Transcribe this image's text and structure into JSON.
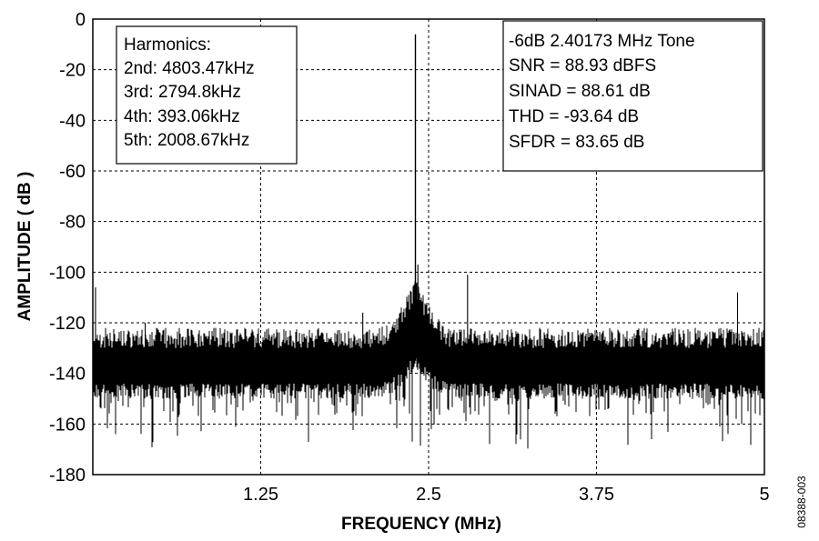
{
  "figure_code": "08388-003",
  "chart_data": {
    "type": "line",
    "title": "",
    "xlabel": "FREQUENCY (MHz)",
    "ylabel": "AMPLITUDE ( dB )",
    "xlim": [
      0,
      5
    ],
    "ylim": [
      -180,
      0
    ],
    "x_ticks": [
      1.25,
      2.5,
      3.75,
      5
    ],
    "x_tick_labels": [
      "1.25",
      "2.5",
      "3.75",
      "5"
    ],
    "y_ticks": [
      0,
      -20,
      -40,
      -60,
      -80,
      -100,
      -120,
      -140,
      -160,
      -180
    ],
    "y_tick_labels": [
      "0",
      "-20",
      "-40",
      "-60",
      "-80",
      "-100",
      "-120",
      "-140",
      "-160",
      "-180"
    ],
    "grid": true,
    "grid_style": "dashed",
    "series_color": "#000000",
    "noise_floor_db": -135,
    "noise_band_db": [
      -150,
      -122
    ],
    "noise_spike_min_db": -170,
    "peaks": [
      {
        "freq_mhz": 2.40173,
        "amplitude_db": -6
      },
      {
        "freq_mhz": 2.42,
        "amplitude_db": -97
      },
      {
        "freq_mhz": 2.79,
        "amplitude_db": -101
      },
      {
        "freq_mhz": 4.8,
        "amplitude_db": -108
      },
      {
        "freq_mhz": 2.01,
        "amplitude_db": -116
      },
      {
        "freq_mhz": 0.39,
        "amplitude_db": -120
      },
      {
        "freq_mhz": 0.02,
        "amplitude_db": -106
      }
    ],
    "harmonics_box": {
      "lines": [
        "Harmonics:",
        "2nd: 4803.47kHz",
        "3rd: 2794.8kHz",
        "4th: 393.06kHz",
        "5th: 2008.67kHz"
      ]
    },
    "stats_box": {
      "lines": [
        "-6dB 2.40173 MHz Tone",
        "SNR = 88.93 dBFS",
        "SINAD = 88.61 dB",
        "THD = -93.64 dB",
        "SFDR = 83.65 dB"
      ]
    }
  }
}
